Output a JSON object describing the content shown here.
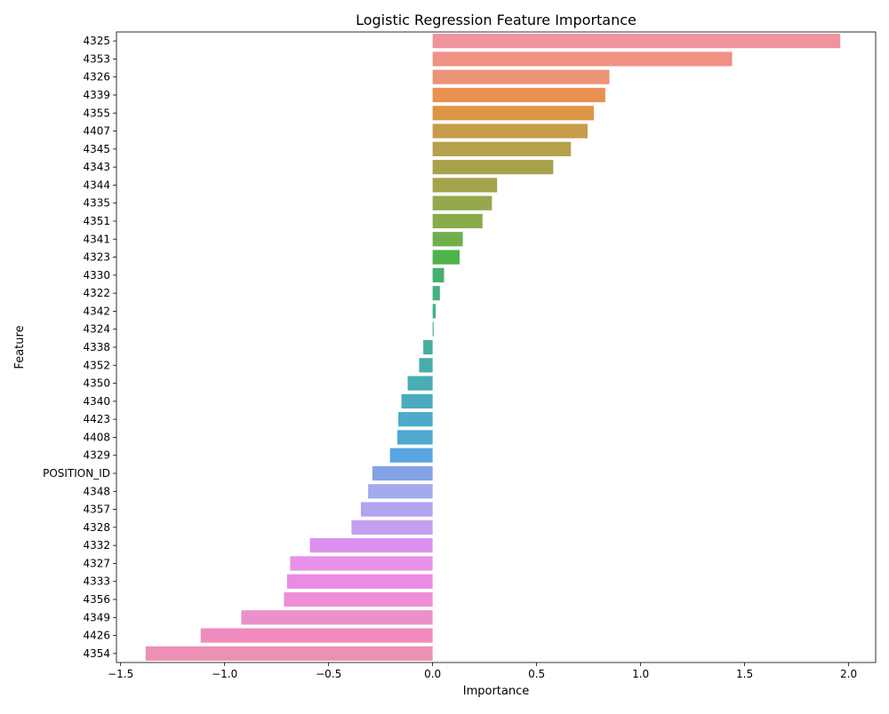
{
  "chart_data": {
    "type": "bar",
    "orientation": "horizontal",
    "title": "Logistic Regression Feature Importance",
    "xlabel": "Importance",
    "ylabel": "Feature",
    "xlim": [
      -1.52,
      2.13
    ],
    "xticks": [
      -1.5,
      -1.0,
      -0.5,
      0.0,
      0.5,
      1.0,
      1.5,
      2.0
    ],
    "xtick_labels": [
      "−1.5",
      "−1.0",
      "−0.5",
      "0.0",
      "0.5",
      "1.0",
      "1.5",
      "2.0"
    ],
    "grid": false,
    "categories": [
      "4325",
      "4353",
      "4326",
      "4339",
      "4355",
      "4407",
      "4345",
      "4343",
      "4344",
      "4335",
      "4351",
      "4341",
      "4323",
      "4330",
      "4322",
      "4342",
      "4324",
      "4338",
      "4352",
      "4350",
      "4340",
      "4423",
      "4408",
      "4329",
      "POSITION_ID",
      "4348",
      "4357",
      "4328",
      "4332",
      "4327",
      "4333",
      "4356",
      "4349",
      "4426",
      "4354"
    ],
    "values": [
      1.96,
      1.44,
      0.85,
      0.83,
      0.775,
      0.745,
      0.665,
      0.58,
      0.31,
      0.285,
      0.24,
      0.145,
      0.13,
      0.055,
      0.035,
      0.015,
      0.005,
      -0.045,
      -0.065,
      -0.12,
      -0.15,
      -0.165,
      -0.17,
      -0.205,
      -0.29,
      -0.31,
      -0.345,
      -0.39,
      -0.59,
      -0.685,
      -0.7,
      -0.715,
      -0.92,
      -1.115,
      -1.38
    ],
    "colors": [
      "#f0939c",
      "#ef9184",
      "#ea9577",
      "#e99150",
      "#dc9746",
      "#c69c4a",
      "#b7a04c",
      "#a8a24d",
      "#a2a34b",
      "#95a84d",
      "#8aab4b",
      "#72ae4c",
      "#4eb34b",
      "#45b16e",
      "#45b185",
      "#46b094",
      "#45aea3",
      "#47ae9e",
      "#4aadab",
      "#4aacb5",
      "#4aabbe",
      "#4eaac8",
      "#51a8d0",
      "#5aa5e0",
      "#84a3e5",
      "#a2a9ee",
      "#b0a3f0",
      "#c49ef0",
      "#dc91ee",
      "#e991ea",
      "#ea8ce5",
      "#ed8fd8",
      "#eb90cb",
      "#ef8bbd",
      "#ec90b5"
    ]
  }
}
